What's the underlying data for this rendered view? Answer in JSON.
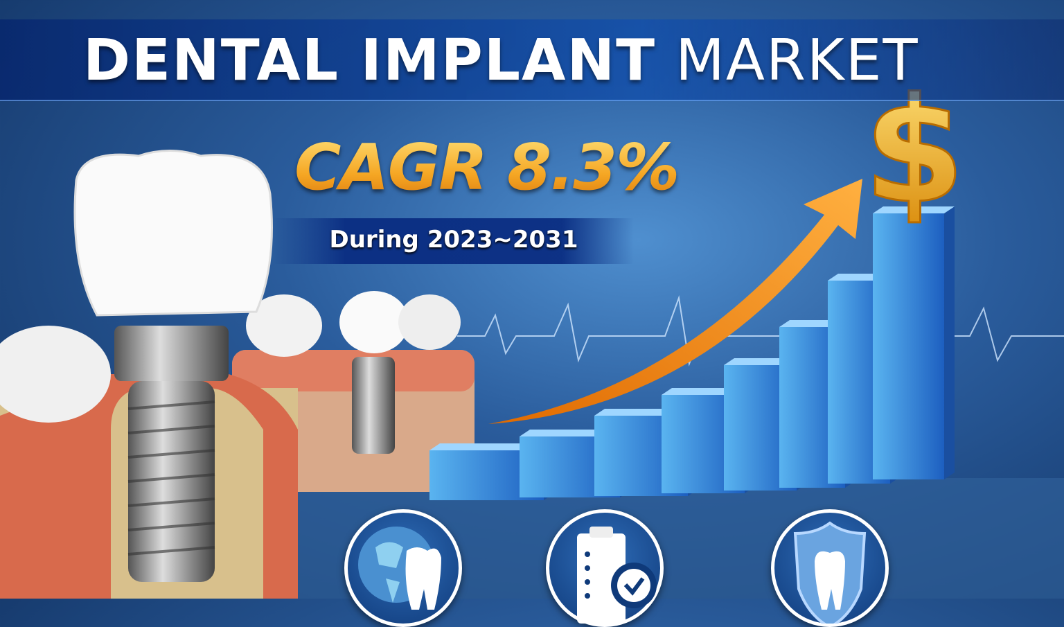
{
  "header": {
    "title_bold": "DENTAL IMPLANT",
    "title_light": "MARKET"
  },
  "headline": {
    "cagr_label": "CAGR",
    "cagr_value": "8.3%",
    "period": "During 2023~2031"
  },
  "icons": [
    {
      "name": "globe-tooth-icon"
    },
    {
      "name": "clipboard-check-icon"
    },
    {
      "name": "shield-tooth-icon"
    }
  ],
  "colors": {
    "background": "#2a5c9c",
    "accent": "#f5a623",
    "arrow": "#f07a10",
    "bars": "#3a8fe0"
  }
}
